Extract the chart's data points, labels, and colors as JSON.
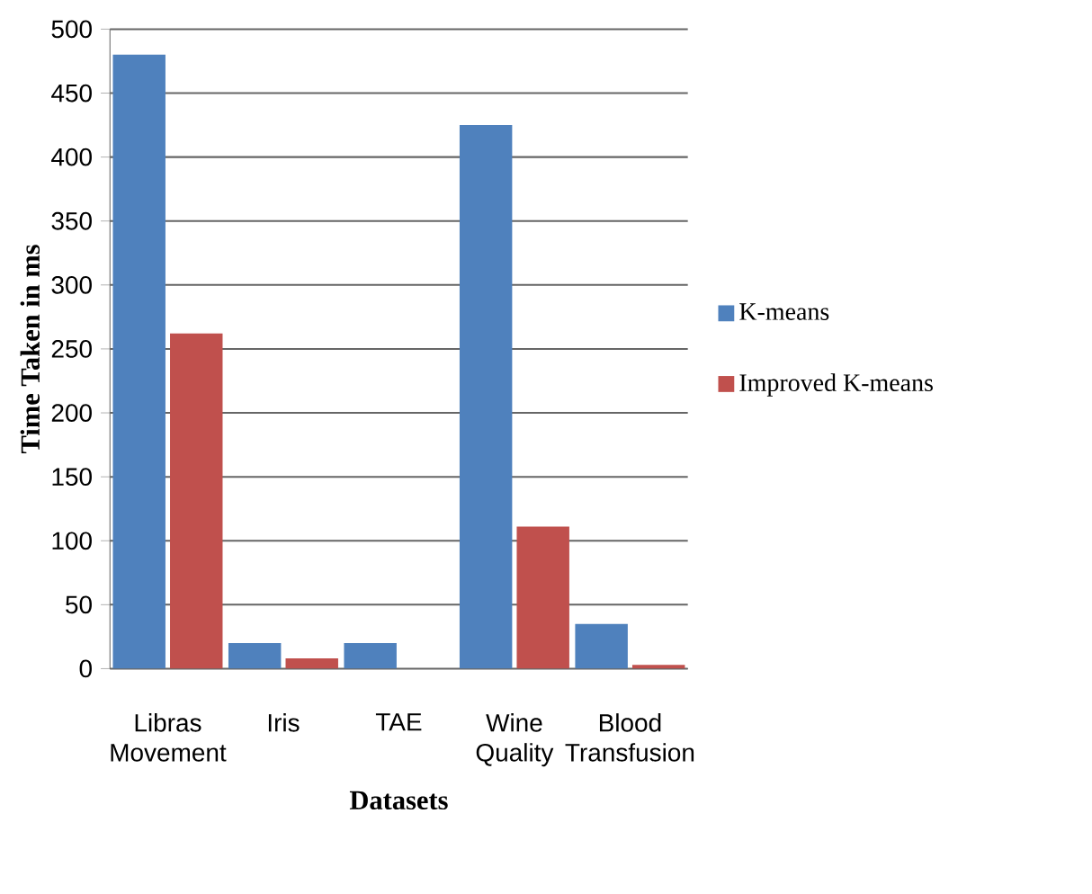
{
  "chart_data": {
    "type": "bar",
    "xlabel": "Datasets",
    "ylabel": "Time Taken in ms",
    "categories": [
      "Libras Movement",
      "Iris",
      "TAE",
      "Wine Quality",
      "Blood Transfusion"
    ],
    "series": [
      {
        "name": "K-means",
        "color": "#4f81bd",
        "values": [
          480,
          20,
          20,
          425,
          35
        ]
      },
      {
        "name": "Improved K-means",
        "color": "#c0504d",
        "values": [
          262,
          8,
          0,
          111,
          3
        ]
      }
    ],
    "ylim": [
      0,
      500
    ],
    "yticks": [
      0,
      50,
      100,
      150,
      200,
      250,
      300,
      350,
      400,
      450,
      500
    ],
    "grid": "y",
    "legend": "right"
  }
}
